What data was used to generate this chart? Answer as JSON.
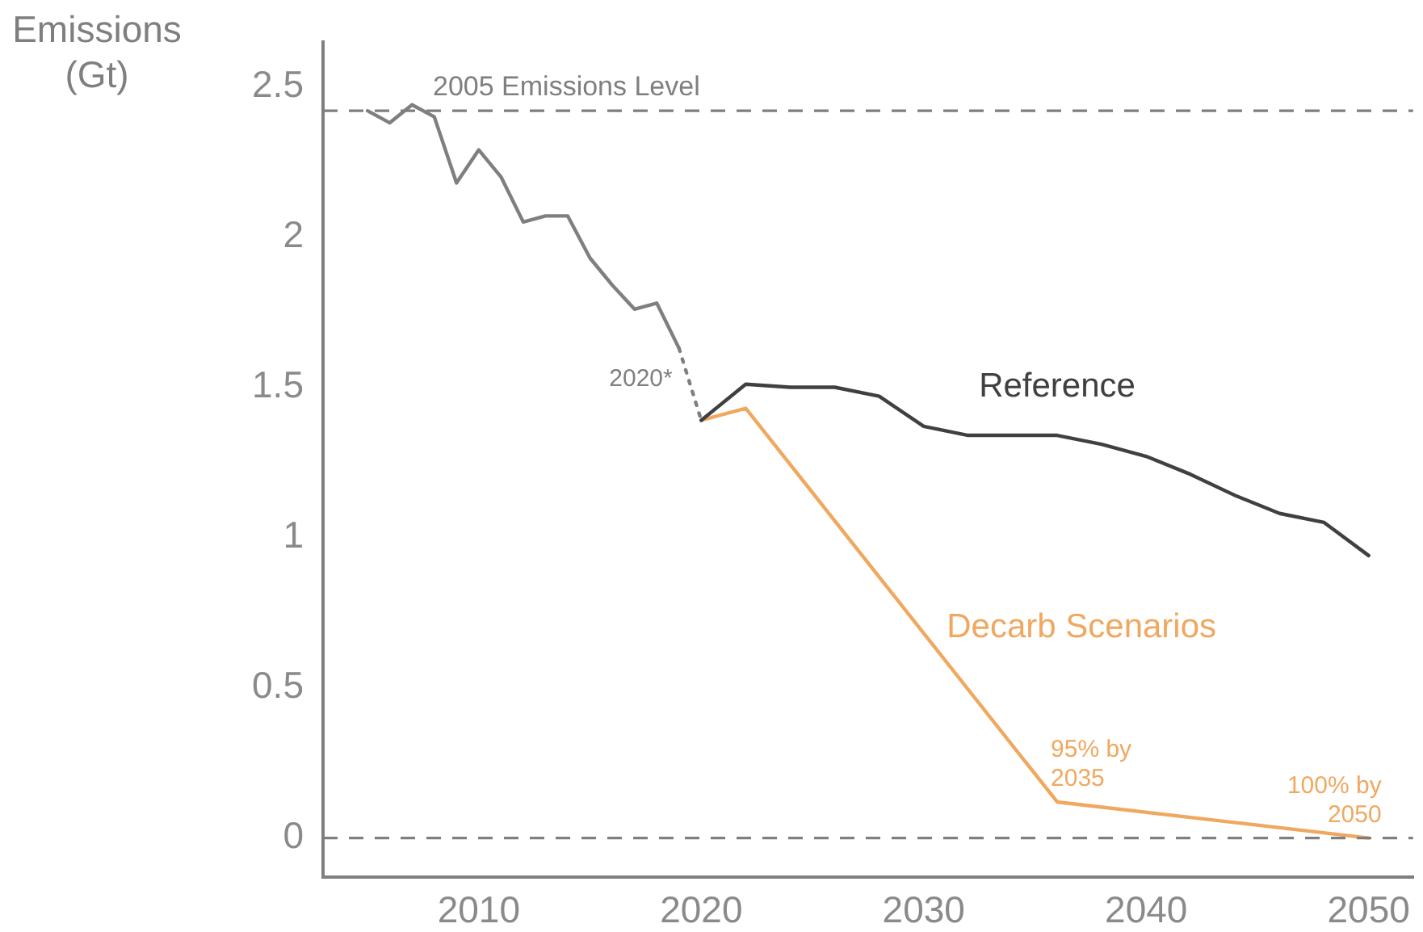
{
  "chart_data": {
    "type": "line",
    "ylabel": "Emissions (Gt)",
    "xlim": [
      2003,
      2052
    ],
    "xticks": [
      2010,
      2020,
      2030,
      2040,
      2050
    ],
    "ylim": [
      -0.13,
      2.65
    ],
    "yticks": [
      0,
      0.5,
      1,
      1.5,
      2,
      2.5
    ],
    "grid": false,
    "legend": false,
    "marker": "none",
    "series": [
      {
        "color": "#7f7f7f",
        "x": [
          2005,
          2006,
          2007,
          2008,
          2009,
          2010,
          2011,
          2012,
          2013,
          2014,
          2015,
          2016,
          2017,
          2018,
          2019
        ],
        "values": [
          2.42,
          2.38,
          2.44,
          2.4,
          2.18,
          2.29,
          2.2,
          2.05,
          2.07,
          2.07,
          1.93,
          1.84,
          1.76,
          1.78,
          1.63
        ]
      },
      {
        "color": "#7f7f7f",
        "line_style": "dotted",
        "x": [
          2019,
          2020
        ],
        "values": [
          1.63,
          1.39
        ]
      },
      {
        "name": "Reference",
        "color": "#404040",
        "x": [
          2020,
          2022,
          2024,
          2026,
          2028,
          2030,
          2032,
          2034,
          2036,
          2038,
          2040,
          2042,
          2044,
          2046,
          2048,
          2050
        ],
        "values": [
          1.39,
          1.51,
          1.5,
          1.5,
          1.47,
          1.37,
          1.34,
          1.34,
          1.34,
          1.31,
          1.27,
          1.21,
          1.14,
          1.08,
          1.05,
          0.94
        ]
      },
      {
        "name": "Decarb Scenarios",
        "color": "#f0a860",
        "x": [
          2020,
          2022,
          2036,
          2050
        ],
        "values": [
          1.39,
          1.43,
          0.12,
          0
        ]
      }
    ],
    "ref_lines": [
      {
        "axis": "y",
        "value": 2.42,
        "label": "2005 Emissions Level",
        "color": "#7f7f7f",
        "line_style": "dashed"
      },
      {
        "axis": "y",
        "value": 0,
        "color": "#7f7f7f",
        "line_style": "dashed"
      }
    ],
    "annotations": [
      {
        "text": "2020*",
        "x": 2019,
        "y": 1.53
      },
      {
        "text": "95% by\n2035",
        "x": 2036,
        "y": 0.12
      },
      {
        "text": "100% by\n2050",
        "x": 2050,
        "y": 0
      }
    ]
  }
}
